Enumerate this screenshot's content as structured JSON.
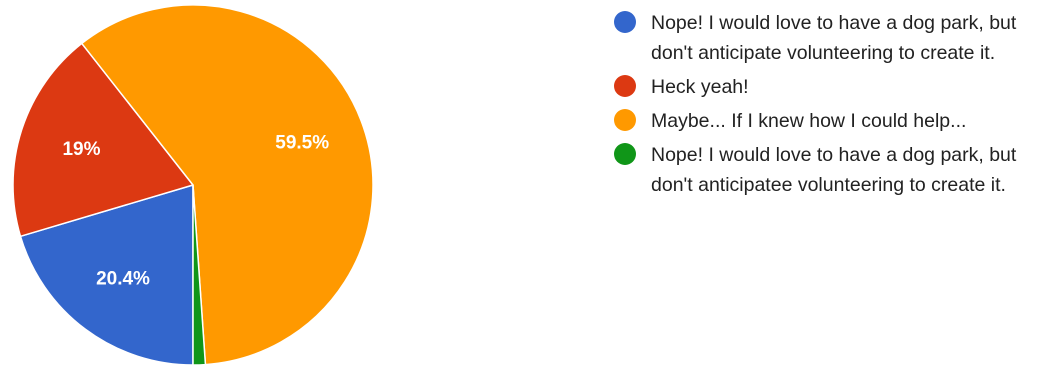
{
  "chart_data": {
    "type": "pie",
    "slices": [
      {
        "label": "Nope! I would love to have a dog park, but don't anticipate volunteering to create it.",
        "value": 20.4,
        "display": "20.4%",
        "color": "#3366cc"
      },
      {
        "label": "Heck yeah!",
        "value": 19,
        "display": "19%",
        "color": "#dc3912"
      },
      {
        "label": "Maybe... If I knew how I could help...",
        "value": 59.5,
        "display": "59.5%",
        "color": "#ff9900"
      },
      {
        "label": "Nope! I would love to have a dog park, but don't anticipatee volunteering to create it.",
        "value": 1.1,
        "display": "",
        "color": "#109618"
      }
    ],
    "start_angle_deg": 90,
    "direction": "clockwise",
    "legend_position": "right"
  }
}
